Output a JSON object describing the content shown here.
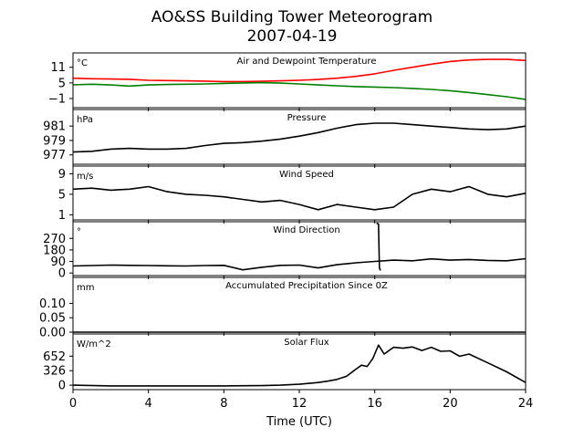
{
  "title": "AO&SS Building Tower Meteorogram",
  "subtitle": "2007-04-19",
  "chart_data": {
    "type": "line",
    "xlabel": "Time (UTC)",
    "xlim": [
      0,
      24
    ],
    "xticks": [
      0,
      4,
      8,
      12,
      16,
      20,
      24
    ],
    "grid": false,
    "panels": [
      {
        "id": "temperature",
        "title": "Air and Dewpoint Temperature",
        "unit": "°C",
        "ylim": [
          -4.5,
          16.5
        ],
        "yticks": [
          -1,
          5,
          11
        ],
        "ytick_labels": [
          "−1",
          "5",
          "11"
        ],
        "series": [
          {
            "color": "#ff0000",
            "x": [
              0,
              1,
              2,
              3,
              4,
              5,
              6,
              7,
              8,
              9,
              10,
              11,
              12,
              13,
              14,
              15,
              16,
              17,
              18,
              19,
              20,
              21,
              22,
              23,
              24
            ],
            "y": [
              6.8,
              6.6,
              6.5,
              6.4,
              6.0,
              5.9,
              5.8,
              5.7,
              5.5,
              5.5,
              5.6,
              5.8,
              6.0,
              6.3,
              6.8,
              7.5,
              8.5,
              9.8,
              11.0,
              12.2,
              13.2,
              13.8,
              14.0,
              14.0,
              13.6
            ]
          },
          {
            "color": "#008000",
            "x": [
              0,
              1,
              2,
              3,
              4,
              5,
              6,
              7,
              8,
              9,
              10,
              11,
              12,
              13,
              14,
              15,
              16,
              17,
              18,
              19,
              20,
              21,
              22,
              23,
              24
            ],
            "y": [
              4.3,
              4.5,
              4.2,
              3.8,
              4.2,
              4.4,
              4.5,
              4.6,
              4.8,
              5.0,
              5.1,
              4.9,
              4.6,
              4.2,
              3.9,
              3.6,
              3.4,
              3.2,
              2.9,
              2.5,
              2.0,
              1.3,
              0.5,
              -0.3,
              -1.3
            ]
          }
        ]
      },
      {
        "id": "pressure",
        "title": "Pressure",
        "unit": "hPa",
        "ylim": [
          975.7,
          983.3
        ],
        "yticks": [
          977,
          979,
          981
        ],
        "series": [
          {
            "color": "#000000",
            "x": [
              0,
              1,
              2,
              3,
              4,
              5,
              6,
              7,
              8,
              9,
              10,
              11,
              12,
              13,
              14,
              15,
              16,
              17,
              18,
              19,
              20,
              21,
              22,
              23,
              24
            ],
            "y": [
              977.4,
              977.5,
              977.8,
              977.9,
              977.8,
              977.8,
              977.9,
              978.3,
              978.6,
              978.7,
              978.9,
              979.2,
              979.6,
              980.1,
              980.7,
              981.2,
              981.4,
              981.4,
              981.2,
              981.0,
              980.8,
              980.6,
              980.5,
              980.6,
              981.0
            ]
          }
        ]
      },
      {
        "id": "wind_speed",
        "title": "Wind Speed",
        "unit": "m/s",
        "ylim": [
          0,
          10.5
        ],
        "yticks": [
          1,
          5,
          9
        ],
        "series": [
          {
            "color": "#000000",
            "x": [
              0,
              1,
              2,
              3,
              4,
              5,
              6,
              7,
              8,
              9,
              10,
              11,
              12,
              13,
              14,
              15,
              16,
              17,
              18,
              19,
              20,
              21,
              22,
              23,
              24
            ],
            "y": [
              6.0,
              6.2,
              5.8,
              6.0,
              6.5,
              5.5,
              5.0,
              4.8,
              4.5,
              4.0,
              3.5,
              3.8,
              3.0,
              2.0,
              3.0,
              2.5,
              2.0,
              2.5,
              5.0,
              6.0,
              5.5,
              6.5,
              5.0,
              4.5,
              5.2
            ]
          }
        ]
      },
      {
        "id": "wind_direction",
        "title": "Wind Direction",
        "unit": "°",
        "ylim": [
          -20,
          400
        ],
        "yticks": [
          0,
          90,
          180,
          270
        ],
        "series": [
          {
            "color": "#000000",
            "x": [
              0,
              1,
              2,
              3,
              4,
              5,
              6,
              7,
              8,
              9,
              10,
              11,
              12,
              13,
              14,
              15,
              16,
              17,
              18,
              19,
              20,
              21,
              22,
              23,
              24
            ],
            "y": [
              55,
              58,
              62,
              60,
              58,
              56,
              55,
              58,
              60,
              25,
              45,
              60,
              62,
              40,
              65,
              80,
              90,
              100,
              95,
              110,
              100,
              105,
              98,
              95,
              112
            ]
          },
          {
            "color": "#000000",
            "x": [
              16.1,
              16.2,
              16.25,
              16.3
            ],
            "y": [
              390,
              382,
              40,
              20
            ]
          }
        ]
      },
      {
        "id": "precipitation",
        "title": "Accumulated Precipitation Since 0Z",
        "unit": "mm",
        "ylim": [
          0,
          0.19
        ],
        "yticks": [
          0.0,
          0.05,
          0.1
        ],
        "ytick_labels": [
          "0.00",
          "0.05",
          "0.10"
        ],
        "series": [
          {
            "color": "#000000",
            "x": [
              0,
              24
            ],
            "y": [
              0.0,
              0.0
            ]
          }
        ]
      },
      {
        "id": "solar_flux",
        "title": "Solar Flux",
        "unit": "W/m^2",
        "ylim": [
          -100,
          1150
        ],
        "yticks": [
          0,
          326,
          652
        ],
        "series": [
          {
            "color": "#000000",
            "x": [
              0,
              2,
              4,
              6,
              8,
              10,
              11,
              12,
              13,
              13.5,
              14,
              14.5,
              15,
              15.3,
              15.6,
              15.9,
              16.2,
              16.5,
              17,
              17.5,
              18,
              18.5,
              19,
              19.5,
              20,
              20.5,
              21,
              22,
              23,
              24
            ],
            "y": [
              0,
              -15,
              -15,
              -15,
              -15,
              -10,
              0,
              20,
              60,
              90,
              130,
              200,
              360,
              450,
              420,
              600,
              900,
              700,
              850,
              830,
              860,
              780,
              850,
              760,
              770,
              650,
              700,
              500,
              300,
              60
            ]
          }
        ]
      }
    ]
  }
}
